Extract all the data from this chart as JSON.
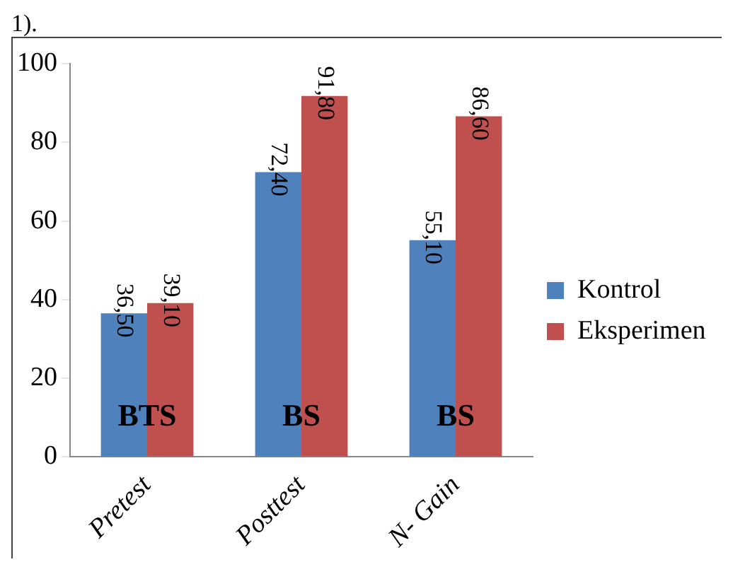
{
  "chart_data": {
    "type": "bar",
    "categories": [
      "Pretest",
      "Posttest",
      "N- Gain"
    ],
    "series": [
      {
        "name": "Kontrol",
        "color": "#4f81bd",
        "values": [
          36.5,
          72.4,
          55.1
        ],
        "value_labels": [
          "36,50",
          "72,40",
          "55,10"
        ]
      },
      {
        "name": "Eksperimen",
        "color": "#c0504d",
        "values": [
          39.1,
          91.8,
          86.6
        ],
        "value_labels": [
          "39,10",
          "91,80",
          "86,60"
        ]
      }
    ],
    "ylim": [
      0,
      100
    ],
    "yticks": [
      0,
      20,
      40,
      60,
      80,
      100
    ],
    "grid": false,
    "legend": "right",
    "annotations": [
      "1).",
      {
        "text": "BTS",
        "x": "Pretest",
        "y": 10
      },
      {
        "text": "BS",
        "x": "Posttest",
        "y": 10
      },
      {
        "text": "BS",
        "x": "N- Gain",
        "y": 10
      }
    ]
  }
}
